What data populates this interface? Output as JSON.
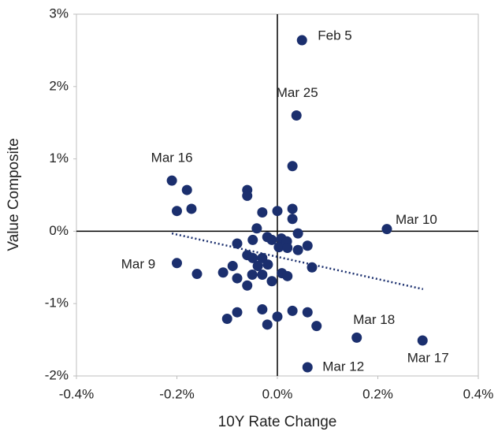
{
  "chart_data": {
    "type": "scatter",
    "xlabel": "10Y Rate Change",
    "ylabel": "Value Composite",
    "color": "#1b2f6e",
    "xlim": [
      -0.4,
      0.4
    ],
    "xticks": [
      {
        "value": -0.4,
        "label": "-0.4%"
      },
      {
        "value": -0.2,
        "label": "-0.2%"
      },
      {
        "value": 0,
        "label": "0.0%"
      },
      {
        "value": 0.2,
        "label": "0.2%"
      },
      {
        "value": 0.4,
        "label": "0.4%"
      }
    ],
    "ylim": [
      -2,
      3
    ],
    "yticks": [
      {
        "value": -2,
        "label": "-2%"
      },
      {
        "value": -1,
        "label": "-1%"
      },
      {
        "value": 0,
        "label": "0%"
      },
      {
        "value": 1,
        "label": "1%"
      },
      {
        "value": 2,
        "label": "2%"
      },
      {
        "value": 3,
        "label": "3%"
      }
    ],
    "x": [
      0.049,
      0.038,
      0.03,
      -0.21,
      -0.18,
      -0.2,
      -0.171,
      -0.06,
      -0.06,
      -0.03,
      0.0,
      0.03,
      0.03,
      0.218,
      0.041,
      -0.041,
      -0.049,
      -0.02,
      -0.011,
      0.008,
      0.019,
      0.003,
      0.02,
      0.041,
      0.06,
      -0.08,
      -0.06,
      -0.049,
      -0.03,
      -0.039,
      -0.019,
      -0.2,
      -0.089,
      -0.108,
      -0.16,
      -0.08,
      -0.05,
      -0.03,
      -0.011,
      -0.06,
      0.009,
      0.02,
      0.069,
      -0.03,
      0.03,
      0.06,
      0.0,
      -0.08,
      -0.1,
      -0.02,
      0.078,
      0.158,
      0.289,
      0.06
    ],
    "values": [
      2.64,
      1.6,
      0.9,
      0.7,
      0.57,
      0.28,
      0.31,
      0.57,
      0.49,
      0.26,
      0.28,
      0.31,
      0.17,
      0.03,
      -0.03,
      0.04,
      -0.12,
      -0.08,
      -0.12,
      -0.1,
      -0.14,
      -0.22,
      -0.23,
      -0.26,
      -0.2,
      -0.17,
      -0.33,
      -0.37,
      -0.37,
      -0.48,
      -0.46,
      -0.44,
      -0.48,
      -0.57,
      -0.59,
      -0.65,
      -0.6,
      -0.6,
      -0.69,
      -0.75,
      -0.58,
      -0.62,
      -0.5,
      -1.08,
      -1.1,
      -1.12,
      -1.18,
      -1.12,
      -1.21,
      -1.29,
      -1.31,
      -1.47,
      -1.51,
      -1.88
    ],
    "trendline": {
      "x": [
        -0.21,
        0.29
      ],
      "y": [
        -0.03,
        -0.8
      ]
    },
    "annotations": [
      {
        "text": "Feb 5",
        "x": 0.049,
        "y": 2.64
      },
      {
        "text": "Mar 25",
        "x": 0.038,
        "y": 1.6
      },
      {
        "text": "Mar 16",
        "x": -0.21,
        "y": 0.7
      },
      {
        "text": "Mar 10",
        "x": 0.218,
        "y": 0.03
      },
      {
        "text": "Mar 9",
        "x": -0.2,
        "y": -0.44
      },
      {
        "text": "Mar 18",
        "x": 0.158,
        "y": -1.47
      },
      {
        "text": "Mar 17",
        "x": 0.289,
        "y": -1.51
      },
      {
        "text": "Mar 12",
        "x": 0.06,
        "y": -1.88
      }
    ]
  }
}
